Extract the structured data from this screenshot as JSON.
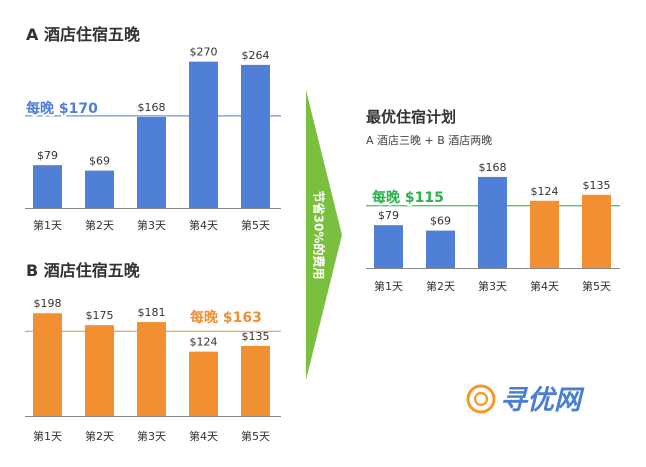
{
  "colors": {
    "blue": "#4f7fd6",
    "orange": "#f28f33",
    "green": "#2bb24c",
    "arrow": "#7bbf3f",
    "title": "#333333",
    "axis": "#888888",
    "blue_avg_line": "#6f97d8",
    "orange_avg_line": "#f4a45c",
    "green_avg_line": "#55c46e",
    "logo_orange": "#f39a2a",
    "logo_blue": "#4a7ed3"
  },
  "arrow_text": "节省30%的费用",
  "logo": {
    "text": "寻优网",
    "icon": "copyright-c-icon"
  },
  "chart_data": [
    {
      "id": "a",
      "type": "bar",
      "title": "A 酒店住宿五晚",
      "categories": [
        "第1天",
        "第2天",
        "第3天",
        "第4天",
        "第5天"
      ],
      "values": [
        79,
        69,
        168,
        270,
        264
      ],
      "value_labels": [
        "$79",
        "$69",
        "$168",
        "$270",
        "$264"
      ],
      "bar_colors": [
        "blue",
        "blue",
        "blue",
        "blue",
        "blue"
      ],
      "average": {
        "value": 170,
        "label": "每晚 $170",
        "color": "blue"
      },
      "ylim": [
        0,
        300
      ],
      "grid": false
    },
    {
      "id": "b",
      "type": "bar",
      "title": "B 酒店住宿五晚",
      "categories": [
        "第1天",
        "第2天",
        "第3天",
        "第4天",
        "第5天"
      ],
      "values": [
        198,
        175,
        181,
        124,
        135
      ],
      "value_labels": [
        "$198",
        "$175",
        "$181",
        "$124",
        "$135"
      ],
      "bar_colors": [
        "orange",
        "orange",
        "orange",
        "orange",
        "orange"
      ],
      "average": {
        "value": 163,
        "label": "每晚 $163",
        "color": "orange"
      },
      "ylim": [
        0,
        300
      ],
      "grid": false
    },
    {
      "id": "c",
      "type": "bar",
      "title": "最优住宿计划",
      "subtitle": "A 酒店三晚 + B 酒店两晚",
      "categories": [
        "第1天",
        "第2天",
        "第3天",
        "第4天",
        "第5天"
      ],
      "values": [
        79,
        69,
        168,
        124,
        135
      ],
      "value_labels": [
        "$79",
        "$69",
        "$168",
        "$124",
        "$135"
      ],
      "bar_colors": [
        "blue",
        "blue",
        "blue",
        "orange",
        "orange"
      ],
      "average": {
        "value": 115,
        "label": "每晚 $115",
        "color": "green"
      },
      "ylim": [
        0,
        300
      ],
      "grid": false
    }
  ]
}
